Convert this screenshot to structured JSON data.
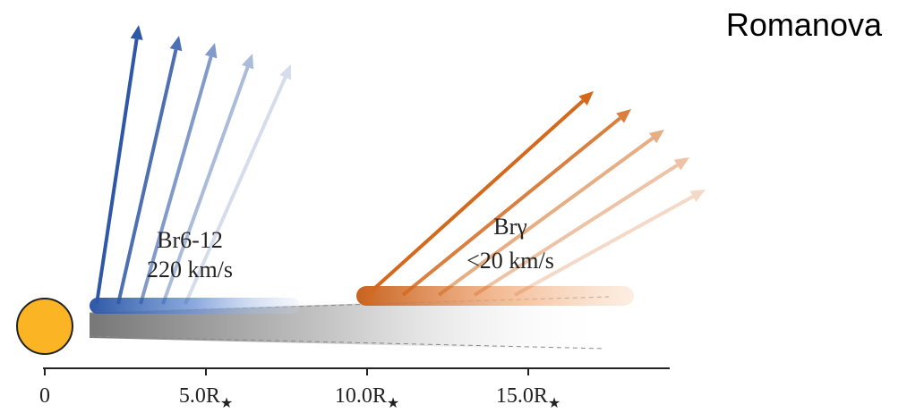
{
  "header": {
    "title": "Romanova"
  },
  "labels": {
    "blue_line": "Br6-12",
    "blue_speed": "220 km/s",
    "orange_line": "Brγ",
    "orange_speed": "<20 km/s"
  },
  "axis": {
    "ticks": [
      {
        "main": "0",
        "sub": ""
      },
      {
        "main": "5.0R",
        "sub": "★"
      },
      {
        "main": "10.0R",
        "sub": "★"
      },
      {
        "main": "15.0R",
        "sub": "★"
      }
    ]
  }
}
